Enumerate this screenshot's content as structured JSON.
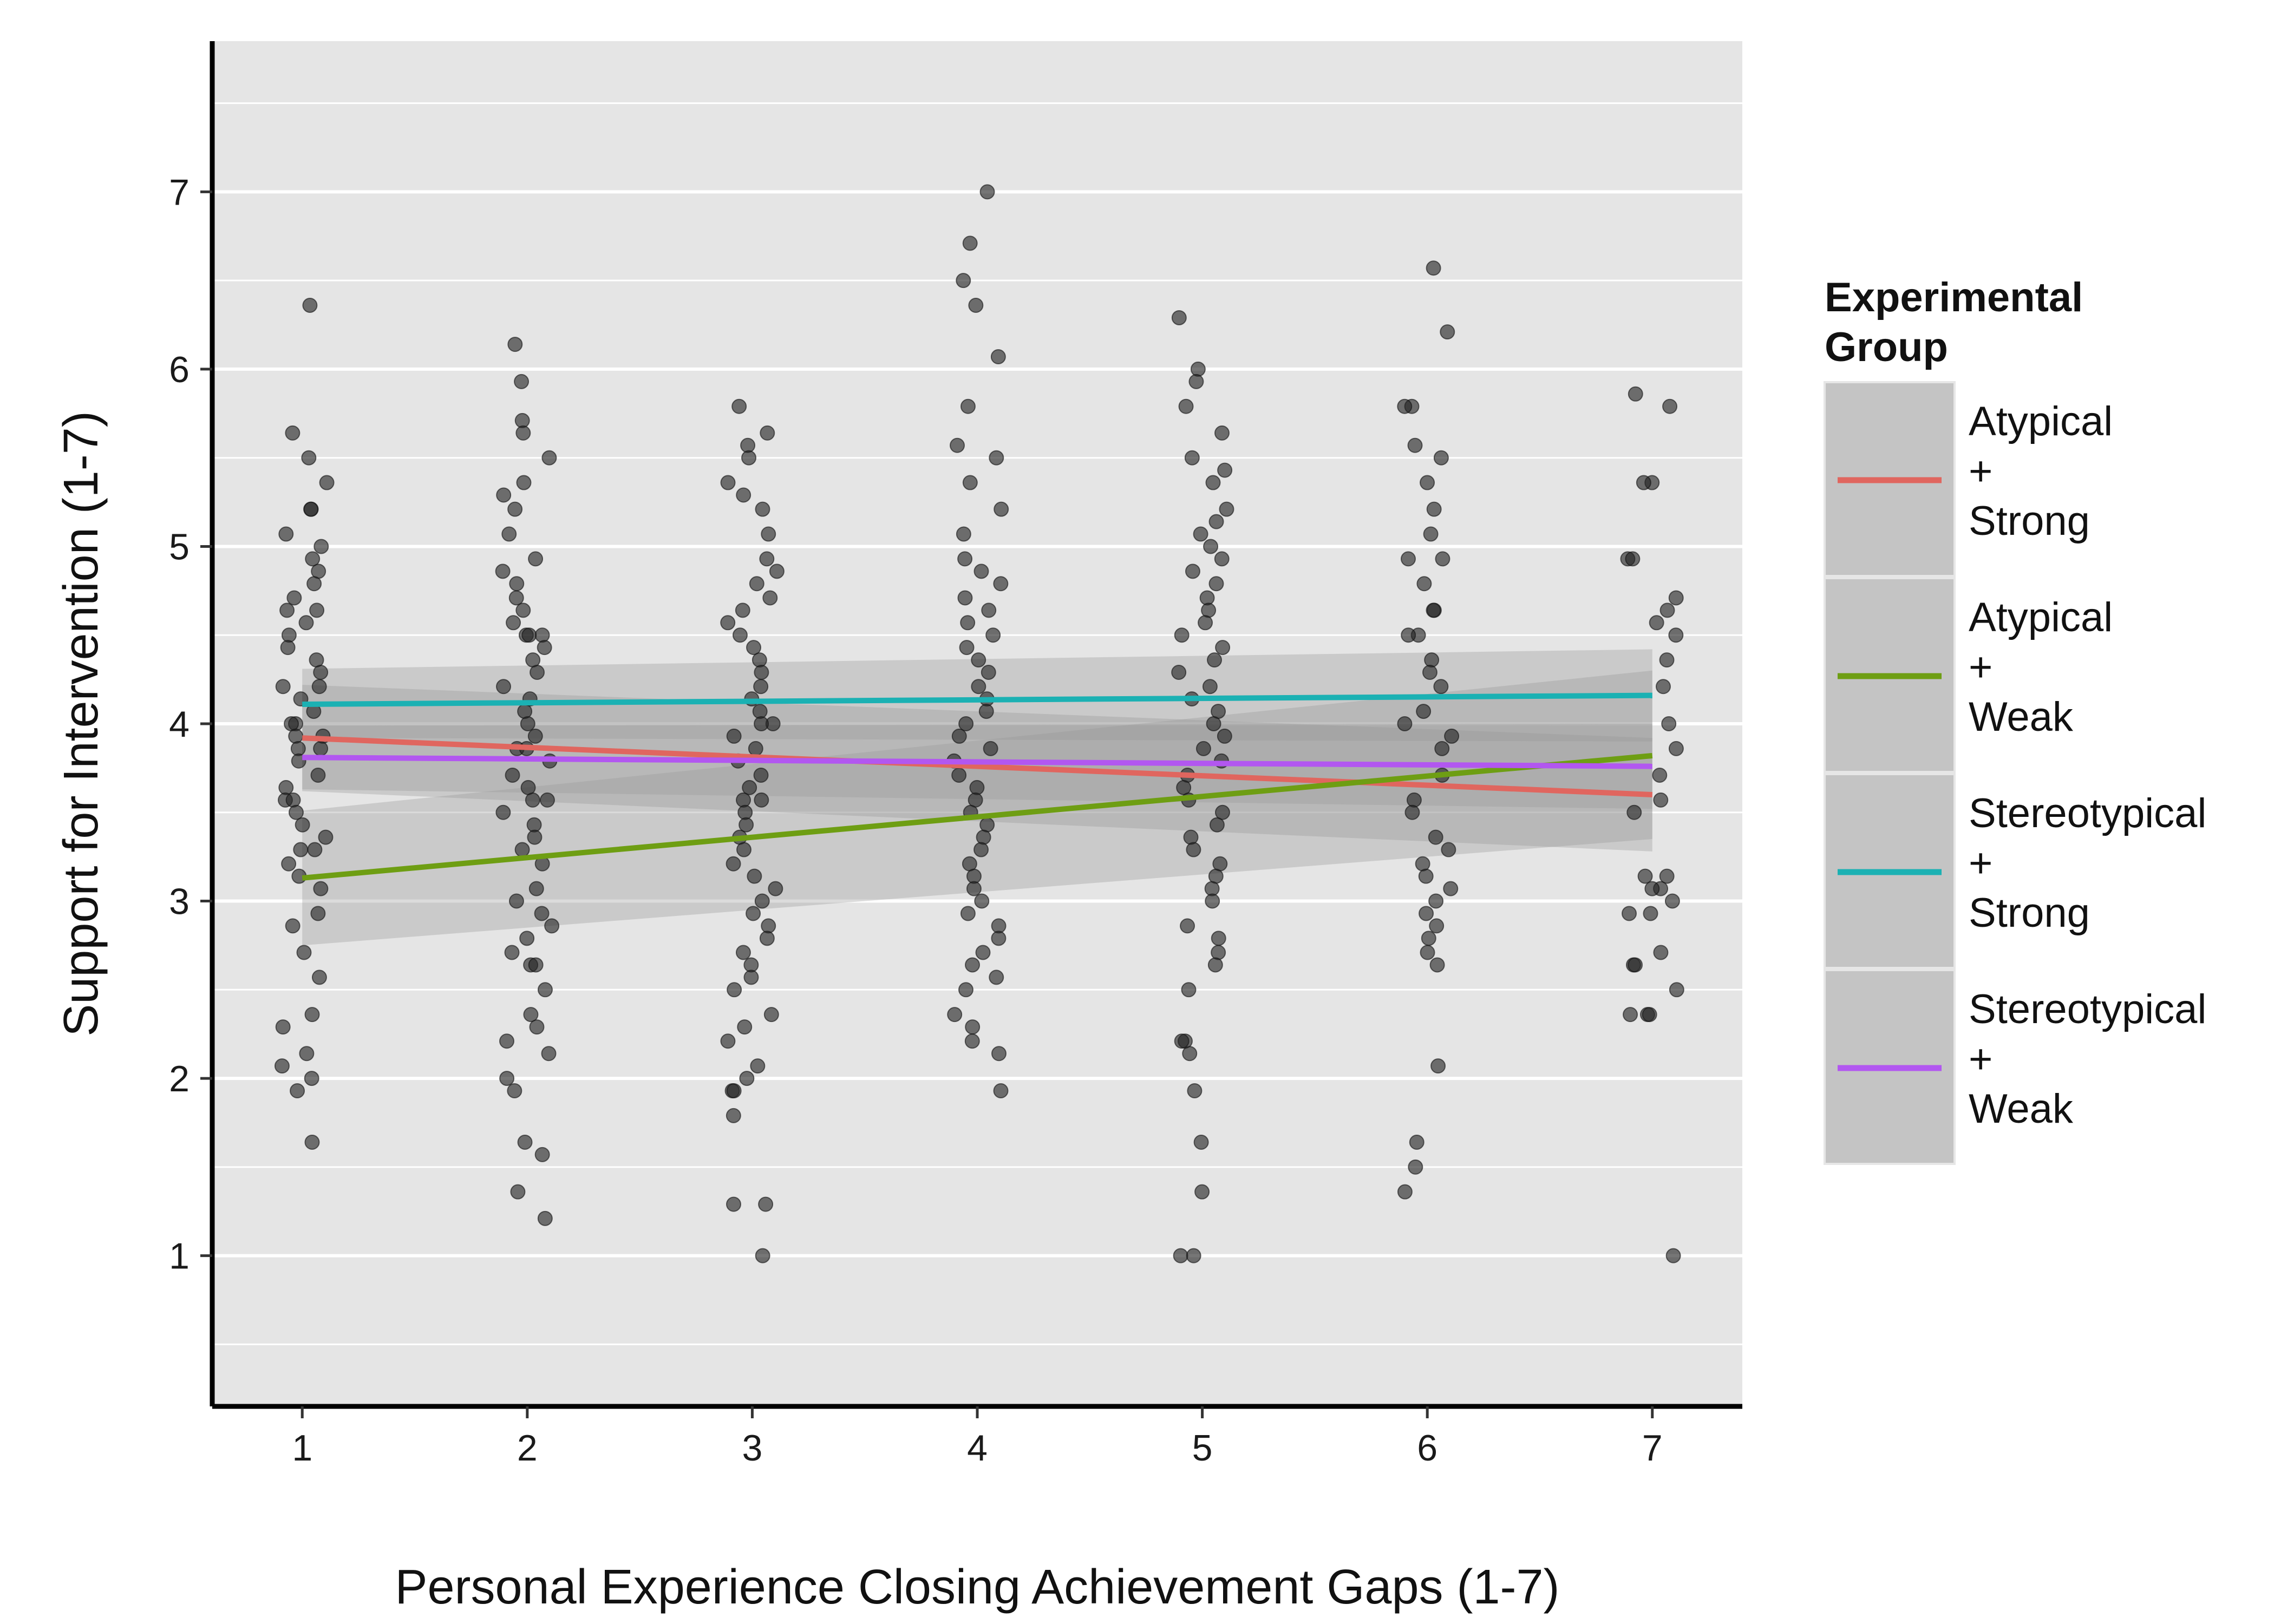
{
  "chart_data": {
    "type": "scatter",
    "xlabel": "Personal Experience Closing Achievement Gaps (1-7)",
    "ylabel": "Support for Intervention (1-7)",
    "xlim": [
      0.6,
      7.4
    ],
    "ylim": [
      0.15,
      7.85
    ],
    "x_ticks": [
      1,
      2,
      3,
      4,
      5,
      6,
      7
    ],
    "y_ticks": [
      1,
      2,
      3,
      4,
      5,
      6,
      7
    ],
    "grid": true,
    "legend": {
      "title": "Experimental Group",
      "position": "right",
      "entries": [
        {
          "label": "Atypical\n+\nStrong",
          "color": "#E0665F"
        },
        {
          "label": "Atypical\n+\nWeak",
          "color": "#6E9E13"
        },
        {
          "label": "Stereotypical\n+\nStrong",
          "color": "#1BB1B3"
        },
        {
          "label": "Stereotypical\n+\nWeak",
          "color": "#B257F0"
        }
      ]
    },
    "trend_lines": [
      {
        "series": "Atypical + Strong",
        "color": "#E0665F",
        "x": [
          1,
          7
        ],
        "y": [
          3.92,
          3.6
        ],
        "ci_lower": [
          3.62,
          3.28
        ],
        "ci_upper": [
          4.22,
          3.92
        ]
      },
      {
        "series": "Atypical + Weak",
        "color": "#6E9E13",
        "x": [
          1,
          7
        ],
        "y": [
          3.13,
          3.82
        ],
        "ci_lower": [
          2.75,
          3.35
        ],
        "ci_upper": [
          3.51,
          4.3
        ]
      },
      {
        "series": "Stereotypical + Strong",
        "color": "#1BB1B3",
        "x": [
          1,
          7
        ],
        "y": [
          4.11,
          4.16
        ],
        "ci_lower": [
          3.92,
          3.9
        ],
        "ci_upper": [
          4.31,
          4.42
        ]
      },
      {
        "series": "Stereotypical + Weak",
        "color": "#B257F0",
        "x": [
          1,
          7
        ],
        "y": [
          3.81,
          3.76
        ],
        "ci_lower": [
          3.63,
          3.52
        ],
        "ci_upper": [
          3.99,
          4.0
        ]
      }
    ],
    "points": [
      {
        "x": 1,
        "y": [
          6.36,
          5.64,
          5.5,
          5.36,
          5.21,
          5.21,
          5.07,
          5.0,
          4.93,
          4.86,
          4.79,
          4.71,
          4.64,
          4.64,
          4.57,
          4.5,
          4.43,
          4.36,
          4.29,
          4.21,
          4.21,
          4.14,
          4.07,
          4.0,
          4.0,
          3.93,
          3.93,
          3.86,
          3.86,
          3.79,
          3.71,
          3.64,
          3.57,
          3.57,
          3.5,
          3.43,
          3.36,
          3.29,
          3.29,
          3.21,
          3.14,
          3.07,
          2.93,
          2.86,
          2.71,
          2.57,
          2.36,
          2.29,
          2.14,
          2.07,
          2.0,
          1.93,
          1.64
        ]
      },
      {
        "x": 2,
        "y": [
          6.14,
          5.93,
          5.71,
          5.64,
          5.5,
          5.36,
          5.29,
          5.21,
          5.07,
          4.93,
          4.86,
          4.79,
          4.71,
          4.64,
          4.57,
          4.5,
          4.5,
          4.5,
          4.43,
          4.36,
          4.29,
          4.21,
          4.14,
          4.07,
          4.0,
          3.93,
          3.86,
          3.86,
          3.79,
          3.71,
          3.64,
          3.57,
          3.57,
          3.5,
          3.43,
          3.36,
          3.29,
          3.21,
          3.07,
          3.0,
          2.93,
          2.86,
          2.79,
          2.71,
          2.64,
          2.64,
          2.5,
          2.36,
          2.29,
          2.21,
          2.14,
          2.0,
          1.93,
          1.64,
          1.57,
          1.36,
          1.21
        ]
      },
      {
        "x": 3,
        "y": [
          5.79,
          5.64,
          5.57,
          5.5,
          5.36,
          5.29,
          5.21,
          5.07,
          4.93,
          4.86,
          4.79,
          4.71,
          4.64,
          4.57,
          4.5,
          4.43,
          4.36,
          4.29,
          4.21,
          4.14,
          4.07,
          4.0,
          4.0,
          3.93,
          3.86,
          3.79,
          3.71,
          3.64,
          3.57,
          3.57,
          3.5,
          3.43,
          3.36,
          3.29,
          3.21,
          3.14,
          3.07,
          3.0,
          2.93,
          2.86,
          2.79,
          2.71,
          2.64,
          2.57,
          2.5,
          2.36,
          2.29,
          2.21,
          2.07,
          2.0,
          1.93,
          1.93,
          1.79,
          1.29,
          1.29,
          1.0
        ]
      },
      {
        "x": 4,
        "y": [
          7.0,
          6.71,
          6.5,
          6.36,
          6.07,
          5.79,
          5.57,
          5.5,
          5.36,
          5.21,
          5.07,
          4.93,
          4.86,
          4.79,
          4.71,
          4.64,
          4.57,
          4.5,
          4.43,
          4.36,
          4.29,
          4.21,
          4.14,
          4.07,
          4.0,
          3.93,
          3.86,
          3.79,
          3.71,
          3.64,
          3.57,
          3.5,
          3.43,
          3.36,
          3.29,
          3.21,
          3.14,
          3.07,
          3.0,
          2.93,
          2.86,
          2.79,
          2.71,
          2.64,
          2.57,
          2.5,
          2.36,
          2.29,
          2.21,
          2.14,
          1.93
        ]
      },
      {
        "x": 5,
        "y": [
          6.29,
          6.0,
          5.93,
          5.79,
          5.64,
          5.5,
          5.43,
          5.36,
          5.21,
          5.14,
          5.07,
          5.0,
          4.93,
          4.86,
          4.79,
          4.71,
          4.64,
          4.57,
          4.5,
          4.43,
          4.36,
          4.29,
          4.21,
          4.14,
          4.07,
          4.0,
          3.93,
          3.86,
          3.79,
          3.71,
          3.64,
          3.57,
          3.5,
          3.43,
          3.36,
          3.29,
          3.21,
          3.14,
          3.07,
          3.0,
          2.86,
          2.79,
          2.71,
          2.64,
          2.5,
          2.21,
          2.21,
          2.14,
          1.93,
          1.64,
          1.36,
          1.0,
          1.0
        ]
      },
      {
        "x": 6,
        "y": [
          6.57,
          6.21,
          5.79,
          5.79,
          5.57,
          5.5,
          5.36,
          5.21,
          5.07,
          4.93,
          4.93,
          4.79,
          4.64,
          4.64,
          4.5,
          4.5,
          4.36,
          4.29,
          4.21,
          4.07,
          4.0,
          3.93,
          3.86,
          3.71,
          3.57,
          3.5,
          3.36,
          3.29,
          3.21,
          3.14,
          3.07,
          3.0,
          2.93,
          2.86,
          2.79,
          2.71,
          2.64,
          2.07,
          1.64,
          1.5,
          1.36
        ]
      },
      {
        "x": 7,
        "y": [
          5.86,
          5.79,
          5.36,
          5.36,
          4.93,
          4.93,
          4.71,
          4.64,
          4.57,
          4.5,
          4.36,
          4.21,
          4.0,
          3.86,
          3.71,
          3.57,
          3.5,
          3.14,
          3.14,
          3.07,
          3.07,
          3.0,
          2.93,
          2.93,
          2.71,
          2.64,
          2.64,
          2.5,
          2.36,
          2.36,
          2.36,
          1.0
        ]
      }
    ]
  }
}
